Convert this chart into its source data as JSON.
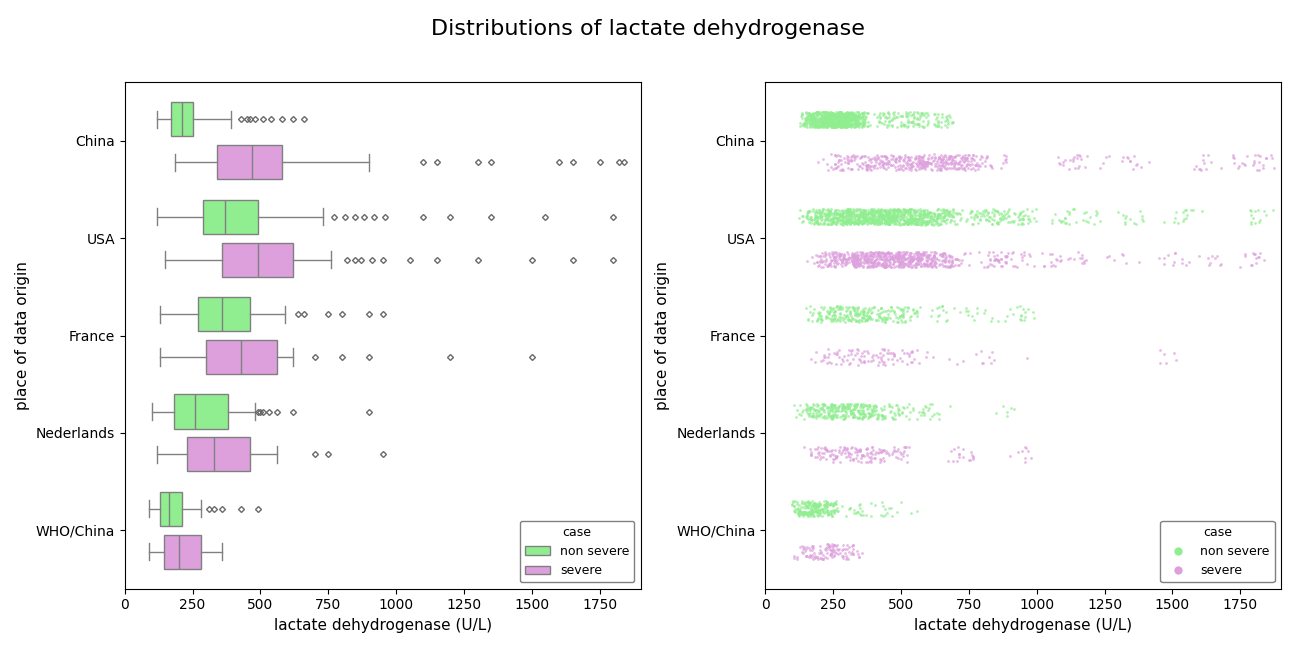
{
  "title": "Distributions of lactate dehydrogenase",
  "xlabel": "lactate dehydrogenase (U/L)",
  "ylabel": "place of data origin",
  "categories": [
    "China",
    "USA",
    "France",
    "Nederlands",
    "WHO/China"
  ],
  "xlim": [
    0,
    1900
  ],
  "xticks": [
    0,
    250,
    500,
    750,
    1000,
    1250,
    1500,
    1750
  ],
  "color_nonsevere": "#90EE90",
  "color_severe": "#DDA0DD",
  "color_outlier": "#696969",
  "legend_title": "case",
  "legend_nonsevere": "non severe",
  "legend_severe": "severe",
  "datasets": {
    "China": {
      "nonsevere": {
        "q1": 170,
        "median": 210,
        "q3": 250,
        "whislo": 120,
        "whishi": 390,
        "outliers": [
          430,
          450,
          460,
          480,
          510,
          540,
          580,
          620,
          660
        ]
      },
      "severe": {
        "q1": 340,
        "median": 470,
        "q3": 580,
        "whislo": 185,
        "whishi": 900,
        "outliers": [
          1100,
          1150,
          1300,
          1350,
          1600,
          1650,
          1750,
          1820,
          1840
        ]
      }
    },
    "USA": {
      "nonsevere": {
        "q1": 290,
        "median": 370,
        "q3": 490,
        "whislo": 120,
        "whishi": 730,
        "outliers": [
          770,
          810,
          850,
          880,
          920,
          960,
          1100,
          1200,
          1350,
          1550,
          1800
        ]
      },
      "severe": {
        "q1": 360,
        "median": 490,
        "q3": 620,
        "whislo": 150,
        "whishi": 760,
        "outliers": [
          820,
          850,
          870,
          910,
          950,
          1050,
          1150,
          1300,
          1500,
          1650,
          1800
        ]
      }
    },
    "France": {
      "nonsevere": {
        "q1": 270,
        "median": 360,
        "q3": 460,
        "whislo": 130,
        "whishi": 590,
        "outliers": [
          640,
          660,
          750,
          800,
          900,
          950
        ]
      },
      "severe": {
        "q1": 300,
        "median": 430,
        "q3": 560,
        "whislo": 130,
        "whishi": 620,
        "outliers": [
          700,
          800,
          900,
          1200,
          1500
        ]
      }
    },
    "Nederlands": {
      "nonsevere": {
        "q1": 180,
        "median": 260,
        "q3": 380,
        "whislo": 100,
        "whishi": 480,
        "outliers": [
          490,
          500,
          510,
          530,
          560,
          620,
          900
        ]
      },
      "severe": {
        "q1": 230,
        "median": 330,
        "q3": 460,
        "whislo": 120,
        "whishi": 560,
        "outliers": [
          700,
          750,
          950
        ]
      }
    },
    "WHO/China": {
      "nonsevere": {
        "q1": 130,
        "median": 165,
        "q3": 210,
        "whislo": 90,
        "whishi": 280,
        "outliers": [
          310,
          330,
          360,
          430,
          490
        ]
      },
      "severe": {
        "q1": 145,
        "median": 200,
        "q3": 280,
        "whislo": 90,
        "whishi": 360,
        "outliers": []
      }
    }
  },
  "dataset_sizes": {
    "China": {
      "nonsevere": 900,
      "severe": 500
    },
    "USA": {
      "nonsevere": 1200,
      "severe": 800
    },
    "France": {
      "nonsevere": 300,
      "severe": 120
    },
    "Nederlands": {
      "nonsevere": 350,
      "severe": 180
    },
    "WHO/China": {
      "nonsevere": 250,
      "severe": 120
    }
  },
  "scatter_seed": 42
}
